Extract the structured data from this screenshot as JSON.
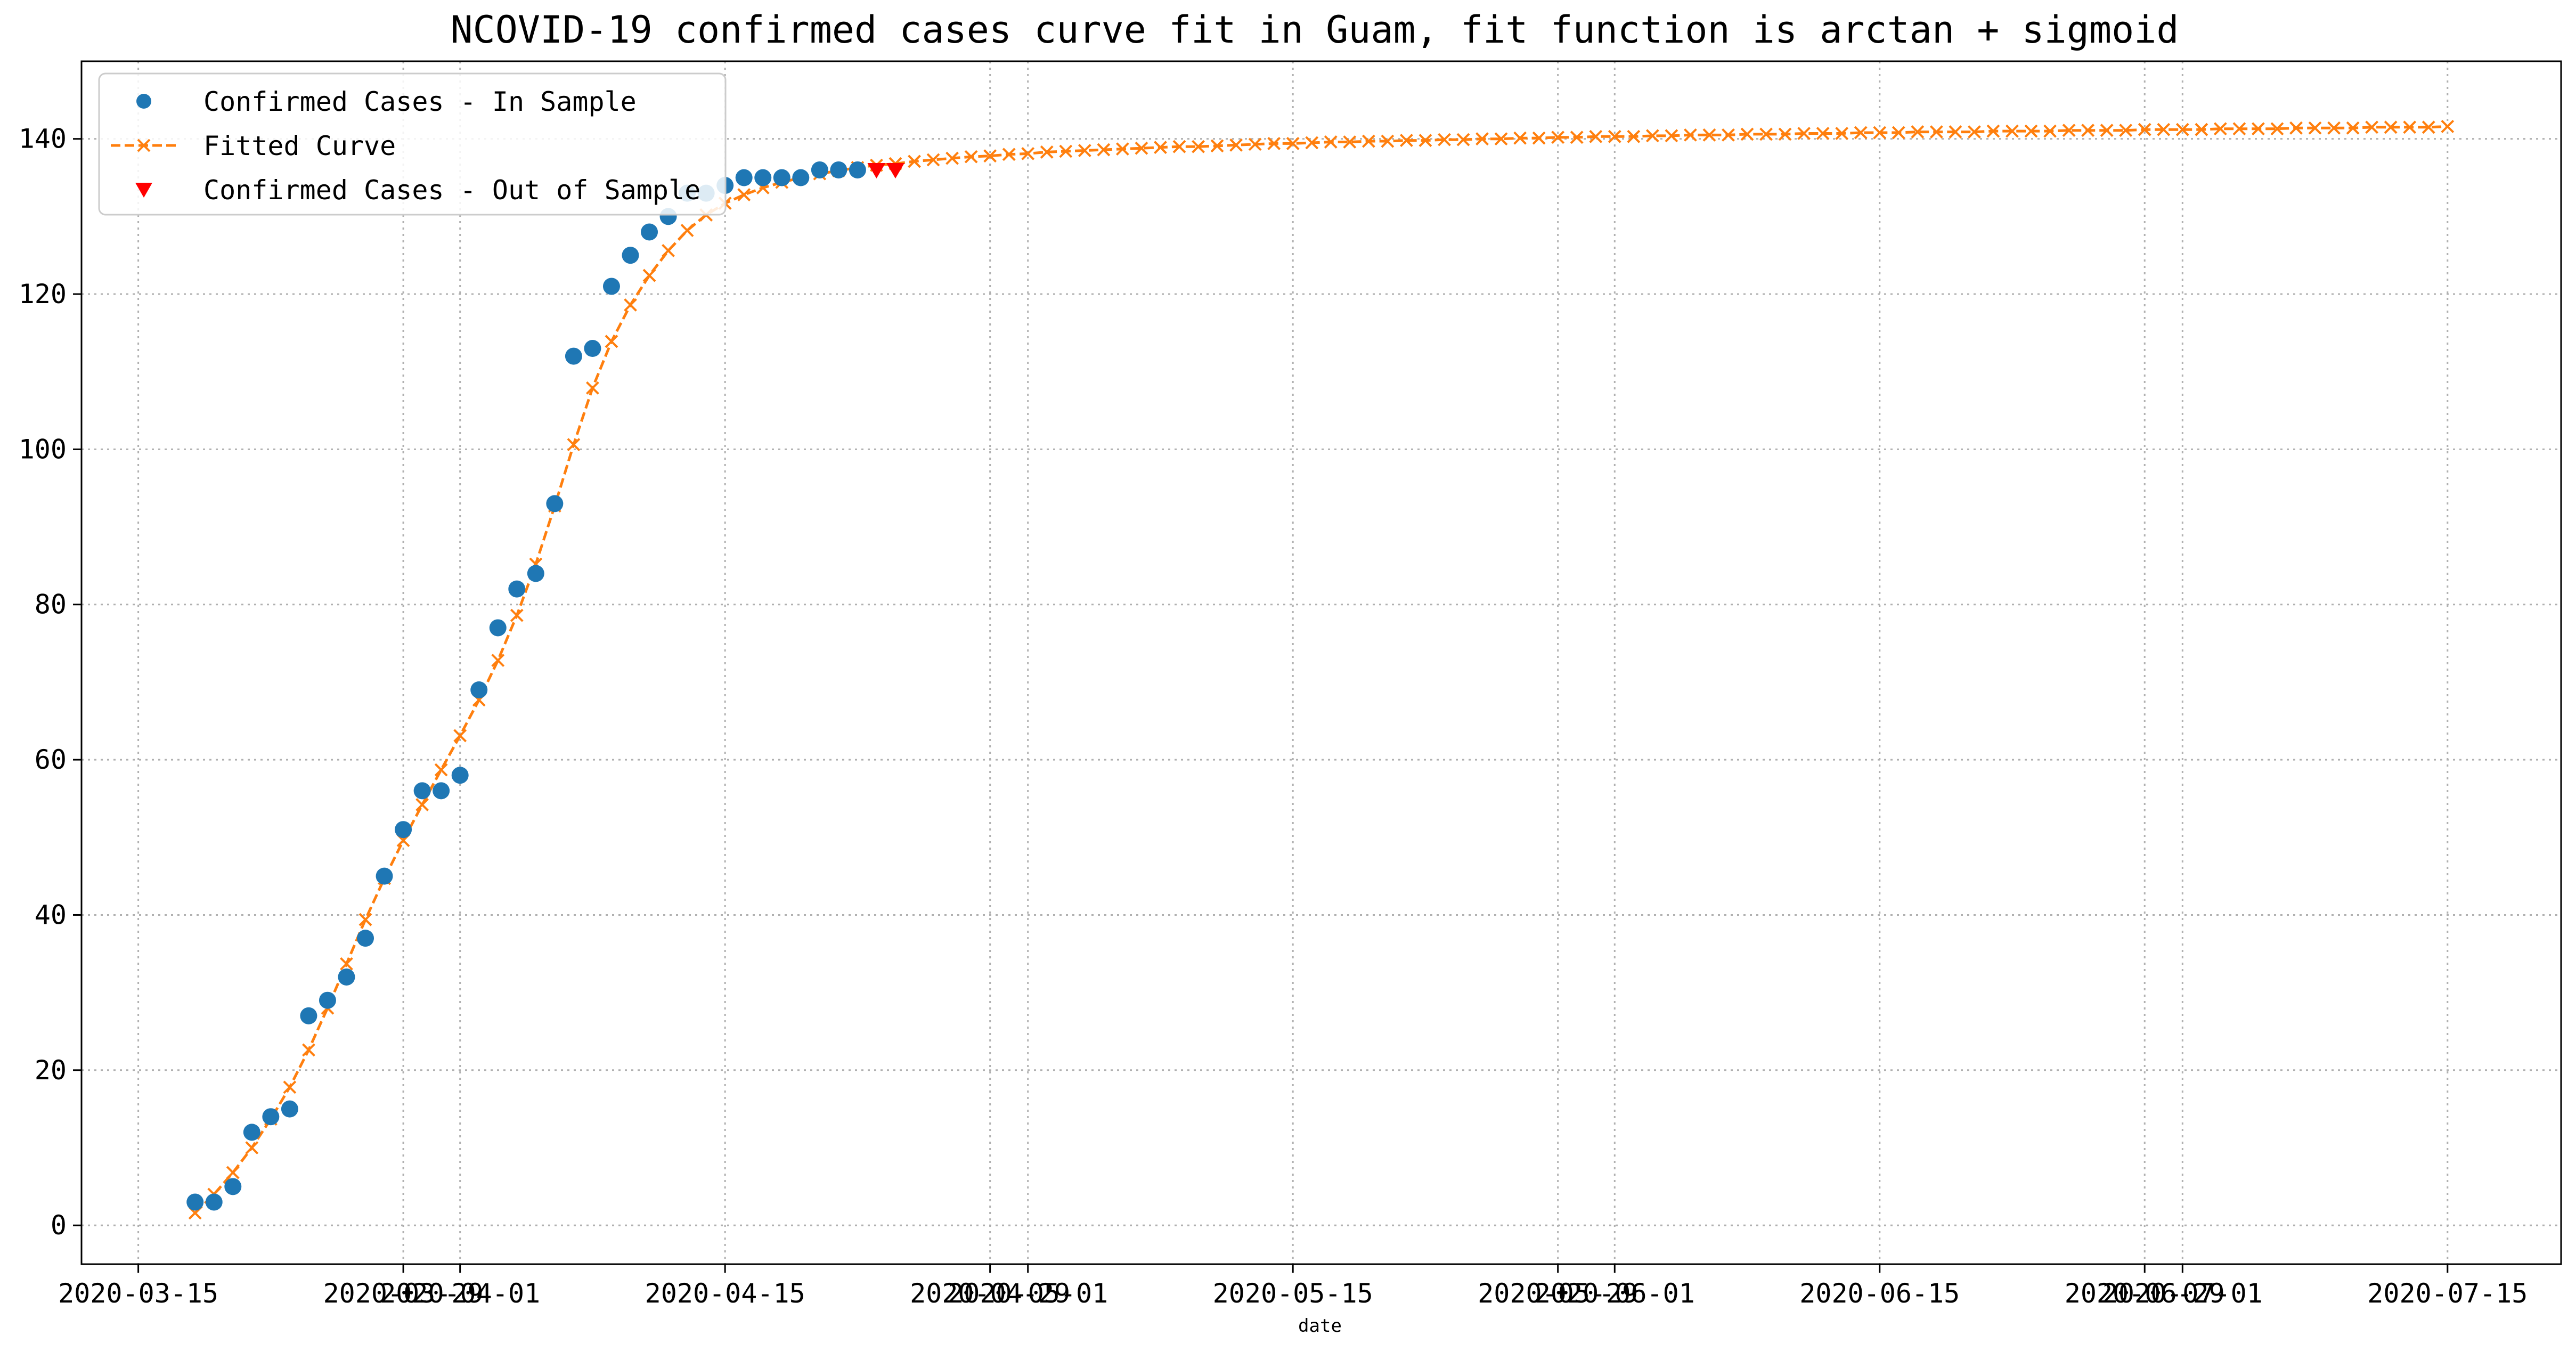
{
  "chart_data": {
    "type": "line",
    "title": "NCOVID-19 confirmed cases curve fit in Guam, fit function is arctan + sigmoid",
    "xlabel": "date",
    "ylabel": "",
    "x_axis": "date",
    "xlim": [
      "2020-03-12",
      "2020-07-21"
    ],
    "ylim": [
      -5,
      150
    ],
    "grid": true,
    "legend_position": "top-left",
    "x_ticks": [
      "2020-03-15",
      "2020-03-29",
      "2020-04-01",
      "2020-04-15",
      "2020-04-29",
      "2020-05-01",
      "2020-05-15",
      "2020-05-29",
      "2020-06-01",
      "2020-06-15",
      "2020-06-29",
      "2020-07-01",
      "2020-07-15"
    ],
    "y_ticks": [
      0,
      20,
      40,
      60,
      80,
      100,
      120,
      140
    ],
    "series": [
      {
        "name": "Confirmed Cases - In Sample",
        "marker": "circle",
        "color": "#1f77b4",
        "x": [
          "2020-03-18",
          "2020-03-19",
          "2020-03-20",
          "2020-03-21",
          "2020-03-22",
          "2020-03-23",
          "2020-03-24",
          "2020-03-25",
          "2020-03-26",
          "2020-03-27",
          "2020-03-28",
          "2020-03-29",
          "2020-03-30",
          "2020-03-31",
          "2020-04-01",
          "2020-04-02",
          "2020-04-03",
          "2020-04-04",
          "2020-04-05",
          "2020-04-06",
          "2020-04-07",
          "2020-04-08",
          "2020-04-09",
          "2020-04-10",
          "2020-04-11",
          "2020-04-12",
          "2020-04-13",
          "2020-04-14",
          "2020-04-15",
          "2020-04-16",
          "2020-04-17",
          "2020-04-18",
          "2020-04-19",
          "2020-04-20",
          "2020-04-21",
          "2020-04-22"
        ],
        "y": [
          3,
          3,
          5,
          12,
          14,
          15,
          27,
          29,
          32,
          37,
          45,
          51,
          56,
          56,
          58,
          69,
          77,
          82,
          84,
          93,
          112,
          113,
          121,
          125,
          128,
          130,
          133,
          133,
          134,
          135,
          135,
          135,
          135,
          136,
          136,
          136
        ]
      },
      {
        "name": "Fitted Curve",
        "marker": "x",
        "linestyle": "dashed",
        "color": "#ff7f0e",
        "x_start": "2020-03-18",
        "x_end": "2020-07-15",
        "x_step_days": 1,
        "y": [
          1.6,
          4.0,
          6.8,
          10.0,
          13.7,
          17.8,
          22.6,
          28.0,
          33.7,
          39.4,
          44.7,
          49.6,
          54.2,
          58.7,
          63.1,
          67.7,
          72.8,
          78.6,
          85.2,
          92.7,
          100.6,
          107.9,
          113.9,
          118.6,
          122.4,
          125.6,
          128.2,
          130.2,
          131.7,
          132.8,
          133.7,
          134.4,
          135.0,
          135.5,
          135.9,
          136.3,
          136.6,
          136.8,
          137.1,
          137.3,
          137.5,
          137.7,
          137.8,
          138.0,
          138.1,
          138.3,
          138.4,
          138.5,
          138.6,
          138.7,
          138.8,
          138.9,
          139.0,
          139.0,
          139.1,
          139.2,
          139.3,
          139.4,
          139.4,
          139.5,
          139.6,
          139.6,
          139.7,
          139.7,
          139.8,
          139.8,
          139.9,
          139.9,
          140.0,
          140.0,
          140.1,
          140.1,
          140.2,
          140.2,
          140.3,
          140.3,
          140.3,
          140.4,
          140.4,
          140.5,
          140.5,
          140.5,
          140.6,
          140.6,
          140.6,
          140.7,
          140.7,
          140.7,
          140.8,
          140.8,
          140.8,
          140.9,
          140.9,
          140.9,
          140.9,
          141.0,
          141.0,
          141.0,
          141.0,
          141.1,
          141.1,
          141.1,
          141.1,
          141.2,
          141.2,
          141.2,
          141.2,
          141.3,
          141.3,
          141.3,
          141.3,
          141.4,
          141.4,
          141.4,
          141.4,
          141.5,
          141.5,
          141.5,
          141.5,
          141.6
        ]
      },
      {
        "name": "Confirmed Cases - Out of Sample",
        "marker": "triangle-down",
        "color": "#ff0000",
        "x": [
          "2020-04-23",
          "2020-04-24"
        ],
        "y": [
          136,
          136
        ]
      }
    ]
  }
}
